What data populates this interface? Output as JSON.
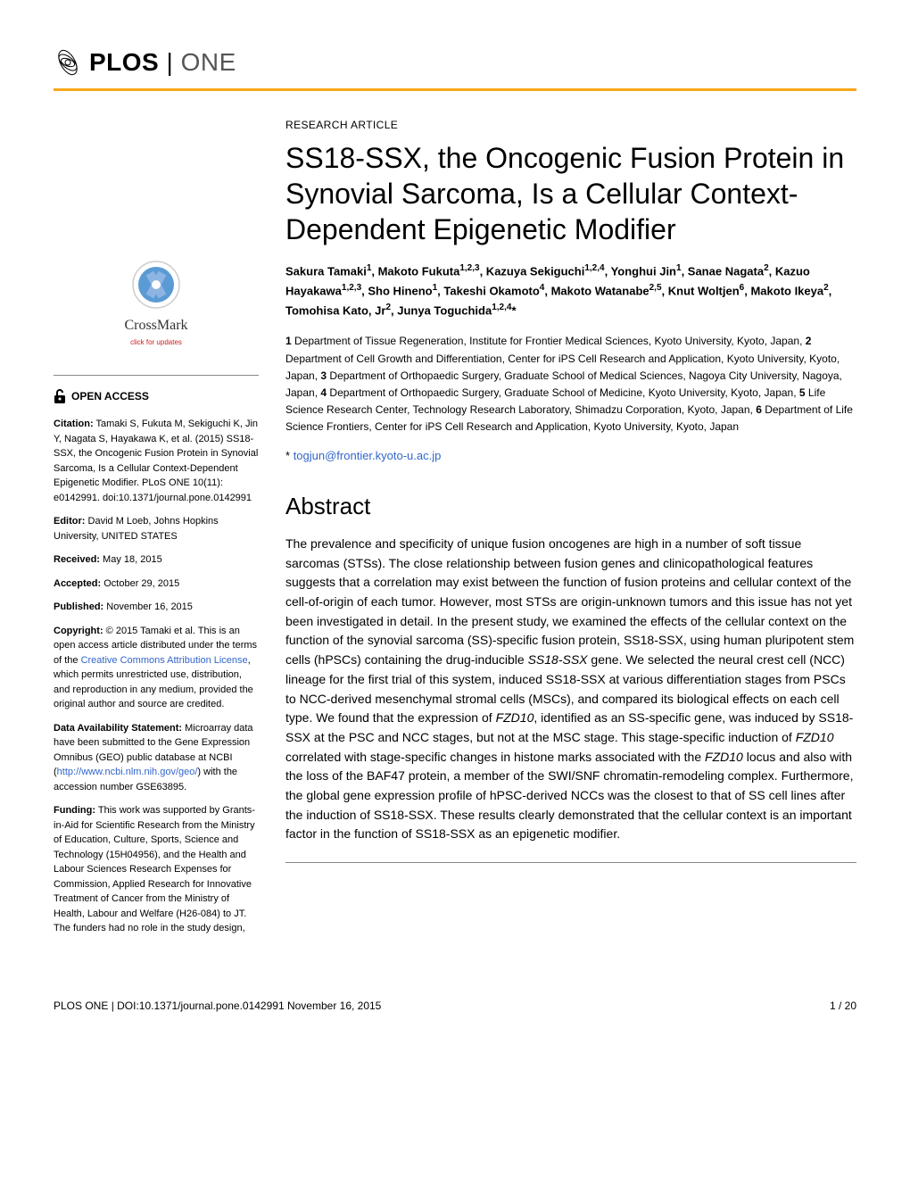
{
  "journal": {
    "name_part1": "PLOS",
    "name_part2": "ONE"
  },
  "article": {
    "type": "RESEARCH ARTICLE",
    "title": "SS18-SSX, the Oncogenic Fusion Protein in Synovial Sarcoma, Is a Cellular Context-Dependent Epigenetic Modifier",
    "correspondence_email": "togjun@frontier.kyoto-u.ac.jp",
    "correspondence_marker": "*"
  },
  "authors_html": "Sakura Tamaki<sup>1</sup>, Makoto Fukuta<sup>1,2,3</sup>, Kazuya Sekiguchi<sup>1,2,4</sup>, Yonghui Jin<sup>1</sup>, Sanae Nagata<sup>2</sup>, Kazuo Hayakawa<sup>1,2,3</sup>, Sho Hineno<sup>1</sup>, Takeshi Okamoto<sup>4</sup>, Makoto Watanabe<sup>2,5</sup>, Knut Woltjen<sup>6</sup>, Makoto Ikeya<sup>2</sup>, Tomohisa Kato, Jr<sup>2</sup>, Junya Toguchida<sup>1,2,4</sup>*",
  "affiliations_html": "<strong>1</strong> Department of Tissue Regeneration, Institute for Frontier Medical Sciences, Kyoto University, Kyoto, Japan, <strong>2</strong> Department of Cell Growth and Differentiation, Center for iPS Cell Research and Application, Kyoto University, Kyoto, Japan, <strong>3</strong> Department of Orthopaedic Surgery, Graduate School of Medical Sciences, Nagoya City University, Nagoya, Japan, <strong>4</strong> Department of Orthopaedic Surgery, Graduate School of Medicine, Kyoto University, Kyoto, Japan, <strong>5</strong> Life Science Research Center, Technology Research Laboratory, Shimadzu Corporation, Kyoto, Japan, <strong>6</strong> Department of Life Science Frontiers, Center for iPS Cell Research and Application, Kyoto University, Kyoto, Japan",
  "abstract": {
    "heading": "Abstract",
    "text_html": "The prevalence and specificity of unique fusion oncogenes are high in a number of soft tissue sarcomas (STSs). The close relationship between fusion genes and clinicopathological features suggests that a correlation may exist between the function of fusion proteins and cellular context of the cell-of-origin of each tumor. However, most STSs are origin-unknown tumors and this issue has not yet been investigated in detail. In the present study, we examined the effects of the cellular context on the function of the synovial sarcoma (SS)-specific fusion protein, SS18-SSX, using human pluripotent stem cells (hPSCs) containing the drug-inducible <em>SS18-SSX</em> gene. We selected the neural crest cell (NCC) lineage for the first trial of this system, induced SS18-SSX at various differentiation stages from PSCs to NCC-derived mesenchymal stromal cells (MSCs), and compared its biological effects on each cell type. We found that the expression of <em>FZD10</em>, identified as an SS-specific gene, was induced by SS18-SSX at the PSC and NCC stages, but not at the MSC stage. This stage-specific induction of <em>FZD10</em> correlated with stage-specific changes in histone marks associated with the <em>FZD10</em> locus and also with the loss of the BAF47 protein, a member of the SWI/SNF chromatin-remodeling complex. Furthermore, the global gene expression profile of hPSC-derived NCCs was the closest to that of SS cell lines after the induction of SS18-SSX. These results clearly demonstrated that the cellular context is an important factor in the function of SS18-SSX as an epigenetic modifier."
  },
  "sidebar": {
    "crossmark_label": "CrossMark",
    "crossmark_sub": "click for updates",
    "open_access": "OPEN ACCESS",
    "citation": "Tamaki S, Fukuta M, Sekiguchi K, Jin Y, Nagata S, Hayakawa K, et al. (2015) SS18-SSX, the Oncogenic Fusion Protein in Synovial Sarcoma, Is a Cellular Context-Dependent Epigenetic Modifier. PLoS ONE 10(11): e0142991. doi:10.1371/journal.pone.0142991",
    "editor": "David M Loeb, Johns Hopkins University, UNITED STATES",
    "received": "May 18, 2015",
    "accepted": "October 29, 2015",
    "published": "November 16, 2015",
    "copyright_pre": "© 2015 Tamaki et al. This is an open access article distributed under the terms of the ",
    "copyright_link": "Creative Commons Attribution License",
    "copyright_post": ", which permits unrestricted use, distribution, and reproduction in any medium, provided the original author and source are credited.",
    "data_pre": "Microarray data have been submitted to the Gene Expression Omnibus (GEO) public database at NCBI (",
    "data_link": "http://www.ncbi.nlm.nih.gov/geo/",
    "data_post": ") with the accession number GSE63895.",
    "funding": "This work was supported by Grants-in-Aid for Scientific Research from the Ministry of Education, Culture, Sports, Science and Technology (15H04956), and the Health and Labour Sciences Research Expenses for Commission, Applied Research for Innovative Treatment of Cancer from the Ministry of Health, Labour and Welfare (H26-084) to JT. The funders had no role in the study design,",
    "labels": {
      "citation": "Citation:",
      "editor": "Editor:",
      "received": "Received:",
      "accepted": "Accepted:",
      "published": "Published:",
      "copyright": "Copyright:",
      "data": "Data Availability Statement:",
      "funding": "Funding:"
    }
  },
  "footer": {
    "left": "PLOS ONE | DOI:10.1371/journal.pone.0142991    November 16, 2015",
    "right": "1 / 20"
  },
  "colors": {
    "accent": "#f7a81b",
    "link": "#3366cc",
    "crossmark_red": "#d02020",
    "crossmark_blue1": "#5a9bd5",
    "crossmark_blue2": "#8db4e2",
    "text": "#000000",
    "bg": "#ffffff"
  }
}
